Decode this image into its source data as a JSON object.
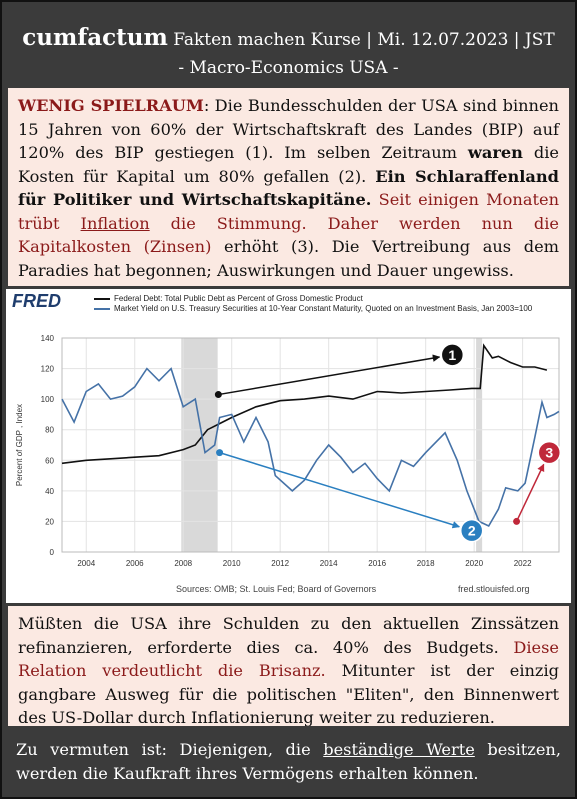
{
  "header": {
    "brand": "cumfactum",
    "tagline": " Fakten machen Kurse | Mi. 12.07.2023 | JST",
    "subtitle": "- Macro-Economics USA -"
  },
  "intro": {
    "runs": [
      "WENIG SPIELRAUM",
      ": Die Bundesschulden der USA sind binnen 15 Jahren von 60% der Wirtschaftskraft des Landes (BIP) auf 120% des BIP gestiegen (1). Im selben Zeitraum ",
      "waren",
      " die Kosten für Kapital um 80% gefallen (2). ",
      "Ein Schlaraffenland für Politiker und Wirtschaftskapitäne.",
      " Seit einigen Monaten trübt ",
      "Inflation",
      " die Stimmung. Daher werden nun die Kapitalkosten (Zinsen)",
      " erhöht (3). Die Vertreibung aus dem Paradies hat begonnen; Auswirkungen und Dauer ungewiss."
    ]
  },
  "chart_data": {
    "type": "line",
    "logo": "FRED",
    "ylabel": "Percent of GDP , Index",
    "series": [
      {
        "name": "Federal Debt: Total Public Debt as Percent of Gross Domestic Product",
        "color": "#111111",
        "x": [
          2003,
          2004,
          2005,
          2006,
          2007,
          2008,
          2008.5,
          2009,
          2009.5,
          2010,
          2011,
          2012,
          2013,
          2014,
          2015,
          2016,
          2017,
          2018,
          2019,
          2019.9,
          2020.25,
          2020.4,
          2020.75,
          2021,
          2021.5,
          2022,
          2022.5,
          2023
        ],
        "values": [
          58,
          60,
          61,
          62,
          63,
          67,
          70,
          80,
          84,
          88,
          95,
          99,
          100,
          102,
          100,
          105,
          104,
          105,
          106,
          107,
          107,
          135,
          127,
          128,
          124,
          121,
          121,
          119
        ]
      },
      {
        "name": "Market Yield on U.S. Treasury Securities at 10-Year Constant Maturity, Quoted on an Investment Basis, Jan 2003=100",
        "color": "#4572a7",
        "x": [
          2003,
          2003.5,
          2004,
          2004.5,
          2005,
          2005.5,
          2006,
          2006.5,
          2007,
          2007.5,
          2008,
          2008.5,
          2008.9,
          2009.3,
          2009.5,
          2010,
          2010.5,
          2011,
          2011.5,
          2011.8,
          2012.5,
          2013,
          2013.5,
          2014,
          2014.5,
          2015,
          2015.5,
          2016,
          2016.5,
          2017,
          2017.5,
          2018,
          2018.8,
          2019.3,
          2019.7,
          2020.2,
          2020.6,
          2021,
          2021.3,
          2021.8,
          2022.1,
          2022.5,
          2022.8,
          2023,
          2023.3,
          2023.5
        ],
        "values": [
          100,
          85,
          105,
          110,
          100,
          102,
          108,
          120,
          112,
          120,
          95,
          100,
          65,
          70,
          88,
          90,
          72,
          88,
          72,
          50,
          40,
          47,
          60,
          70,
          62,
          52,
          58,
          48,
          40,
          60,
          56,
          65,
          78,
          60,
          40,
          20,
          17,
          28,
          42,
          40,
          45,
          75,
          98,
          88,
          90,
          92
        ]
      }
    ],
    "xlim": [
      2003,
      2023.5
    ],
    "xticks": [
      2004,
      2006,
      2008,
      2010,
      2012,
      2014,
      2016,
      2018,
      2020,
      2022
    ],
    "ylim": [
      0,
      140
    ],
    "yticks": [
      0,
      20,
      40,
      60,
      80,
      100,
      120,
      140
    ],
    "grid": true,
    "recessions": [
      [
        2007.92,
        2009.42
      ],
      [
        2020.08,
        2020.33
      ]
    ],
    "annotations": [
      {
        "label": "1",
        "color": "#111111",
        "from": [
          2009.45,
          103
        ],
        "to": [
          2019.1,
          129
        ]
      },
      {
        "label": "2",
        "color": "#2a7fc0",
        "from": [
          2009.5,
          65
        ],
        "to": [
          2019.9,
          14
        ]
      },
      {
        "label": "3",
        "color": "#c0283a",
        "from": [
          2021.75,
          20
        ],
        "to": [
          2023.1,
          65
        ]
      }
    ],
    "source": "Sources: OMB; St. Louis Fed; Board of Governors",
    "url": "fred.stlouisfed.org"
  },
  "outro": {
    "runs": [
      "Müßten die USA ihre Schulden zu den aktuellen Zinssätzen refinanzieren, erforderte dies ca. 40% des Budgets.",
      " Diese Relation verdeutlicht die Brisanz.",
      " Mitunter ist der einzig gangbare Ausweg für die politischen \"Eliten\", den Binnenwert des US-Dollar durch Inflationierung weiter zu reduzieren."
    ]
  },
  "footer": {
    "runs": [
      "Zu vermuten ist: Diejenigen, die ",
      "beständige Werte",
      " besitzen, werden die Kaufkraft ihres Vermögens erhalten können."
    ]
  }
}
